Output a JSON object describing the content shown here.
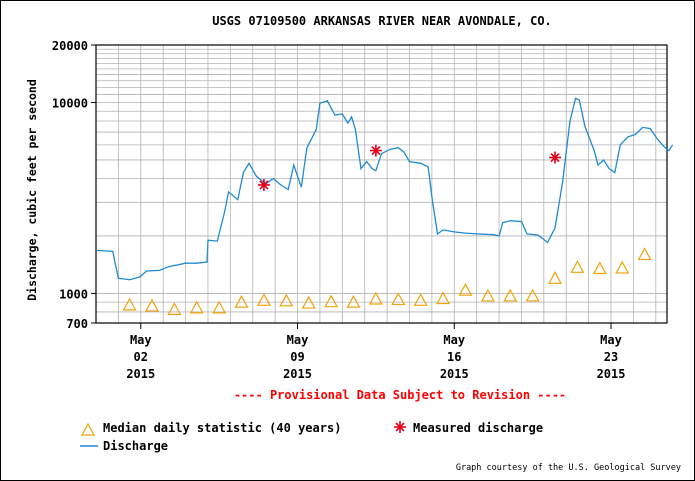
{
  "chart_data": {
    "type": "line",
    "title": "USGS 07109500 ARKANSAS RIVER NEAR AVONDALE, CO.",
    "ylabel": "Discharge, cubic feet per second",
    "xlabel": "",
    "y_scale": "log",
    "ylim": [
      700,
      20000
    ],
    "y_ticks": [
      {
        "value": 700,
        "label": "700"
      },
      {
        "value": 1000,
        "label": "1000"
      },
      {
        "value": 10000,
        "label": "10000"
      },
      {
        "value": 20000,
        "label": "20000"
      }
    ],
    "xlim": [
      "2015-04-30T00:00",
      "2015-05-25T12:00"
    ],
    "x_ticks": [
      {
        "date": "2015-05-02",
        "line1": "May",
        "line2": "02",
        "line3": "2015"
      },
      {
        "date": "2015-05-09",
        "line1": "May",
        "line2": "09",
        "line3": "2015"
      },
      {
        "date": "2015-05-16",
        "line1": "May",
        "line2": "16",
        "line3": "2015"
      },
      {
        "date": "2015-05-23",
        "line1": "May",
        "line2": "23",
        "line3": "2015"
      }
    ],
    "grid": true,
    "notice": "---- Provisional Data Subject to Revision ----",
    "series": [
      {
        "name": "Discharge",
        "kind": "line",
        "color": "#1f8bd0",
        "points": [
          [
            "2015-04-30T00:00",
            1680
          ],
          [
            "2015-04-30T18:00",
            1660
          ],
          [
            "2015-04-30T20:00",
            1480
          ],
          [
            "2015-05-01T00:00",
            1200
          ],
          [
            "2015-05-01T12:00",
            1180
          ],
          [
            "2015-05-01T23:00",
            1220
          ],
          [
            "2015-05-02T06:00",
            1310
          ],
          [
            "2015-05-02T20:00",
            1320
          ],
          [
            "2015-05-03T06:00",
            1380
          ],
          [
            "2015-05-04T00:00",
            1440
          ],
          [
            "2015-05-04T12:00",
            1440
          ],
          [
            "2015-05-04T23:00",
            1460
          ],
          [
            "2015-05-05T00:00",
            1900
          ],
          [
            "2015-05-05T10:00",
            1880
          ],
          [
            "2015-05-05T18:00",
            2700
          ],
          [
            "2015-05-05T22:00",
            3400
          ],
          [
            "2015-05-06T08:00",
            3100
          ],
          [
            "2015-05-06T14:00",
            4300
          ],
          [
            "2015-05-06T20:00",
            4800
          ],
          [
            "2015-05-07T04:00",
            4100
          ],
          [
            "2015-05-07T14:00",
            3750
          ],
          [
            "2015-05-07T22:00",
            4000
          ],
          [
            "2015-05-08T06:00",
            3700
          ],
          [
            "2015-05-08T14:00",
            3500
          ],
          [
            "2015-05-08T20:00",
            4700
          ],
          [
            "2015-05-09T04:00",
            3600
          ],
          [
            "2015-05-09T10:00",
            5800
          ],
          [
            "2015-05-09T20:00",
            7200
          ],
          [
            "2015-05-10T00:00",
            9900
          ],
          [
            "2015-05-10T08:00",
            10200
          ],
          [
            "2015-05-10T16:00",
            8600
          ],
          [
            "2015-05-11T00:00",
            8700
          ],
          [
            "2015-05-11T06:00",
            7800
          ],
          [
            "2015-05-11T10:00",
            8400
          ],
          [
            "2015-05-11T14:00",
            7200
          ],
          [
            "2015-05-11T20:00",
            4500
          ],
          [
            "2015-05-12T02:00",
            4900
          ],
          [
            "2015-05-12T08:00",
            4500
          ],
          [
            "2015-05-12T12:00",
            4400
          ],
          [
            "2015-05-12T18:00",
            5400
          ],
          [
            "2015-05-13T04:00",
            5700
          ],
          [
            "2015-05-13T12:00",
            5800
          ],
          [
            "2015-05-13T18:00",
            5500
          ],
          [
            "2015-05-14T00:00",
            4900
          ],
          [
            "2015-05-14T12:00",
            4800
          ],
          [
            "2015-05-14T20:00",
            4600
          ],
          [
            "2015-05-15T00:00",
            3200
          ],
          [
            "2015-05-15T06:00",
            2050
          ],
          [
            "2015-05-15T12:00",
            2150
          ],
          [
            "2015-05-16T00:00",
            2100
          ],
          [
            "2015-05-16T12:00",
            2070
          ],
          [
            "2015-05-17T00:00",
            2050
          ],
          [
            "2015-05-17T18:00",
            2030
          ],
          [
            "2015-05-18T00:00",
            2000
          ],
          [
            "2015-05-18T04:00",
            2350
          ],
          [
            "2015-05-18T12:00",
            2400
          ],
          [
            "2015-05-19T00:00",
            2380
          ],
          [
            "2015-05-19T06:00",
            2050
          ],
          [
            "2015-05-19T18:00",
            2020
          ],
          [
            "2015-05-20T04:00",
            1850
          ],
          [
            "2015-05-20T12:00",
            2200
          ],
          [
            "2015-05-20T20:00",
            3800
          ],
          [
            "2015-05-21T04:00",
            8000
          ],
          [
            "2015-05-21T10:00",
            10500
          ],
          [
            "2015-05-21T14:00",
            10300
          ],
          [
            "2015-05-21T20:00",
            7500
          ],
          [
            "2015-05-22T06:00",
            5600
          ],
          [
            "2015-05-22T10:00",
            4700
          ],
          [
            "2015-05-22T16:00",
            5000
          ],
          [
            "2015-05-22T22:00",
            4500
          ],
          [
            "2015-05-23T04:00",
            4300
          ],
          [
            "2015-05-23T10:00",
            6000
          ],
          [
            "2015-05-23T18:00",
            6600
          ],
          [
            "2015-05-24T02:00",
            6800
          ],
          [
            "2015-05-24T10:00",
            7400
          ],
          [
            "2015-05-24T18:00",
            7300
          ],
          [
            "2015-05-25T02:00",
            6400
          ],
          [
            "2015-05-25T10:00",
            5800
          ],
          [
            "2015-05-25T14:00",
            5600
          ],
          [
            "2015-05-25T18:00",
            6000
          ]
        ]
      },
      {
        "name": "Median daily statistic (40 years)",
        "kind": "marker",
        "marker": "triangle",
        "color": "#f0a30a",
        "points": [
          [
            "2015-05-01T12:00",
            870
          ],
          [
            "2015-05-02T12:00",
            860
          ],
          [
            "2015-05-03T12:00",
            825
          ],
          [
            "2015-05-04T12:00",
            840
          ],
          [
            "2015-05-05T12:00",
            840
          ],
          [
            "2015-05-06T12:00",
            900
          ],
          [
            "2015-05-07T12:00",
            920
          ],
          [
            "2015-05-08T12:00",
            915
          ],
          [
            "2015-05-09T12:00",
            890
          ],
          [
            "2015-05-10T12:00",
            905
          ],
          [
            "2015-05-11T12:00",
            900
          ],
          [
            "2015-05-12T12:00",
            935
          ],
          [
            "2015-05-13T12:00",
            930
          ],
          [
            "2015-05-14T12:00",
            920
          ],
          [
            "2015-05-15T12:00",
            940
          ],
          [
            "2015-05-16T12:00",
            1040
          ],
          [
            "2015-05-17T12:00",
            970
          ],
          [
            "2015-05-18T12:00",
            970
          ],
          [
            "2015-05-19T12:00",
            970
          ],
          [
            "2015-05-20T12:00",
            1200
          ],
          [
            "2015-05-21T12:00",
            1370
          ],
          [
            "2015-05-22T12:00",
            1350
          ],
          [
            "2015-05-23T12:00",
            1360
          ],
          [
            "2015-05-24T12:00",
            1600
          ]
        ]
      },
      {
        "name": "Measured discharge",
        "kind": "marker",
        "marker": "asterisk",
        "color": "#e0001a",
        "points": [
          [
            "2015-05-07T12:00",
            3700
          ],
          [
            "2015-05-12T12:00",
            5600
          ],
          [
            "2015-05-20T12:00",
            5150
          ]
        ]
      }
    ],
    "legend": {
      "placement": "bottom-left",
      "entries": [
        {
          "label": "Median daily statistic (40 years)",
          "symbol": "triangle"
        },
        {
          "label": "Measured discharge",
          "symbol": "asterisk"
        },
        {
          "label": "Discharge",
          "symbol": "line"
        }
      ]
    },
    "credit": "Graph courtesy of the U.S. Geological Survey"
  }
}
